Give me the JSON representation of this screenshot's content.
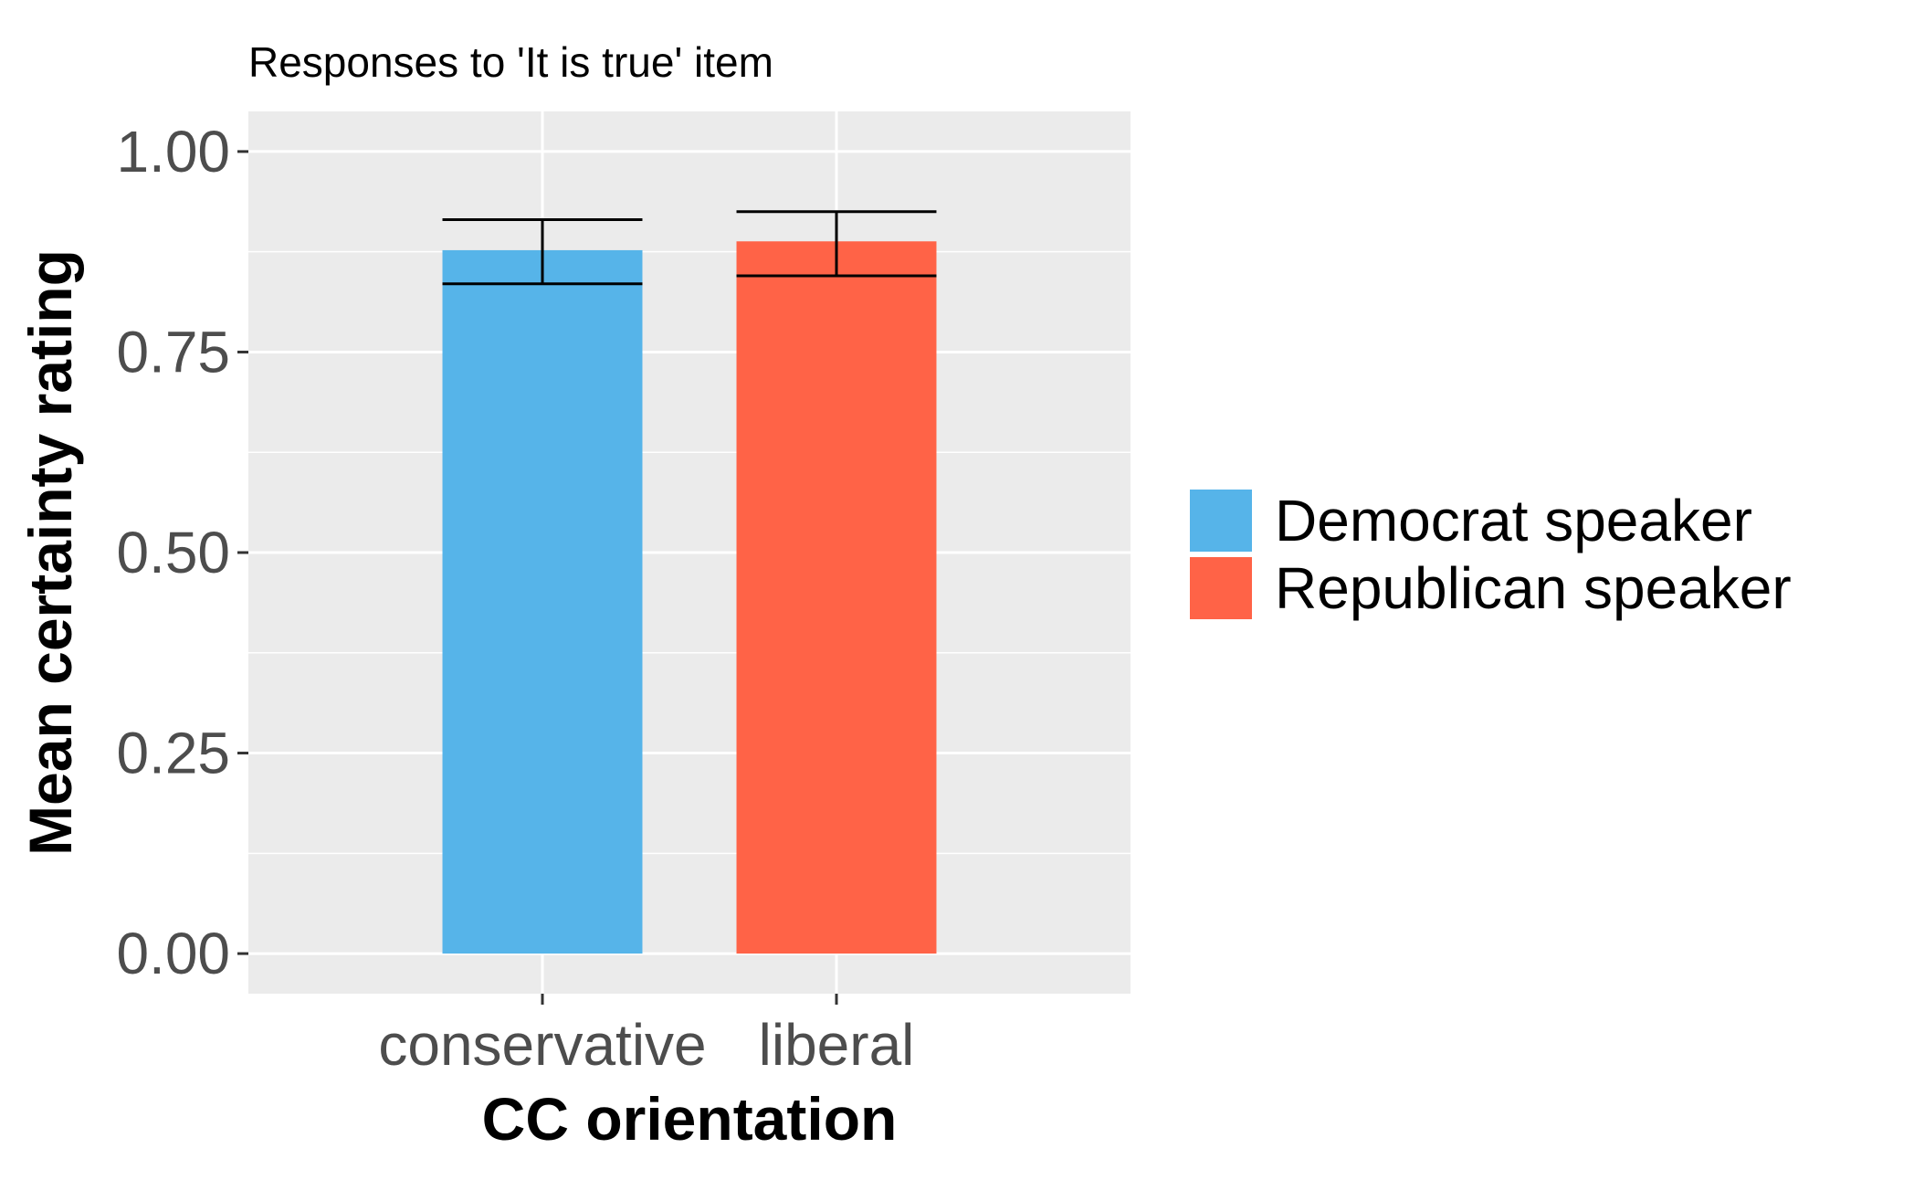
{
  "chart_data": {
    "type": "bar",
    "title": "Responses to 'It is true' item",
    "xlabel": "CC orientation",
    "ylabel": "Mean certainty rating",
    "categories": [
      "conservative",
      "liberal"
    ],
    "series": [
      {
        "name": "Democrat speaker",
        "category": "conservative",
        "value": 0.877,
        "error_low": 0.835,
        "error_high": 0.915,
        "color": "#56B4E9"
      },
      {
        "name": "Republican speaker",
        "category": "liberal",
        "value": 0.888,
        "error_low": 0.845,
        "error_high": 0.925,
        "color": "#FF6347"
      }
    ],
    "ylim": [
      -0.05,
      1.05
    ],
    "yticks": [
      0.0,
      0.25,
      0.5,
      0.75,
      1.0
    ],
    "ytick_labels": [
      "0.00",
      "0.25",
      "0.50",
      "0.75",
      "1.00"
    ],
    "grid": true,
    "legend_position": "right",
    "colors": {
      "panel": "#EBEBEB",
      "grid": "#FFFFFF",
      "axis_text": "#4D4D4D",
      "title_text": "#000000"
    }
  }
}
